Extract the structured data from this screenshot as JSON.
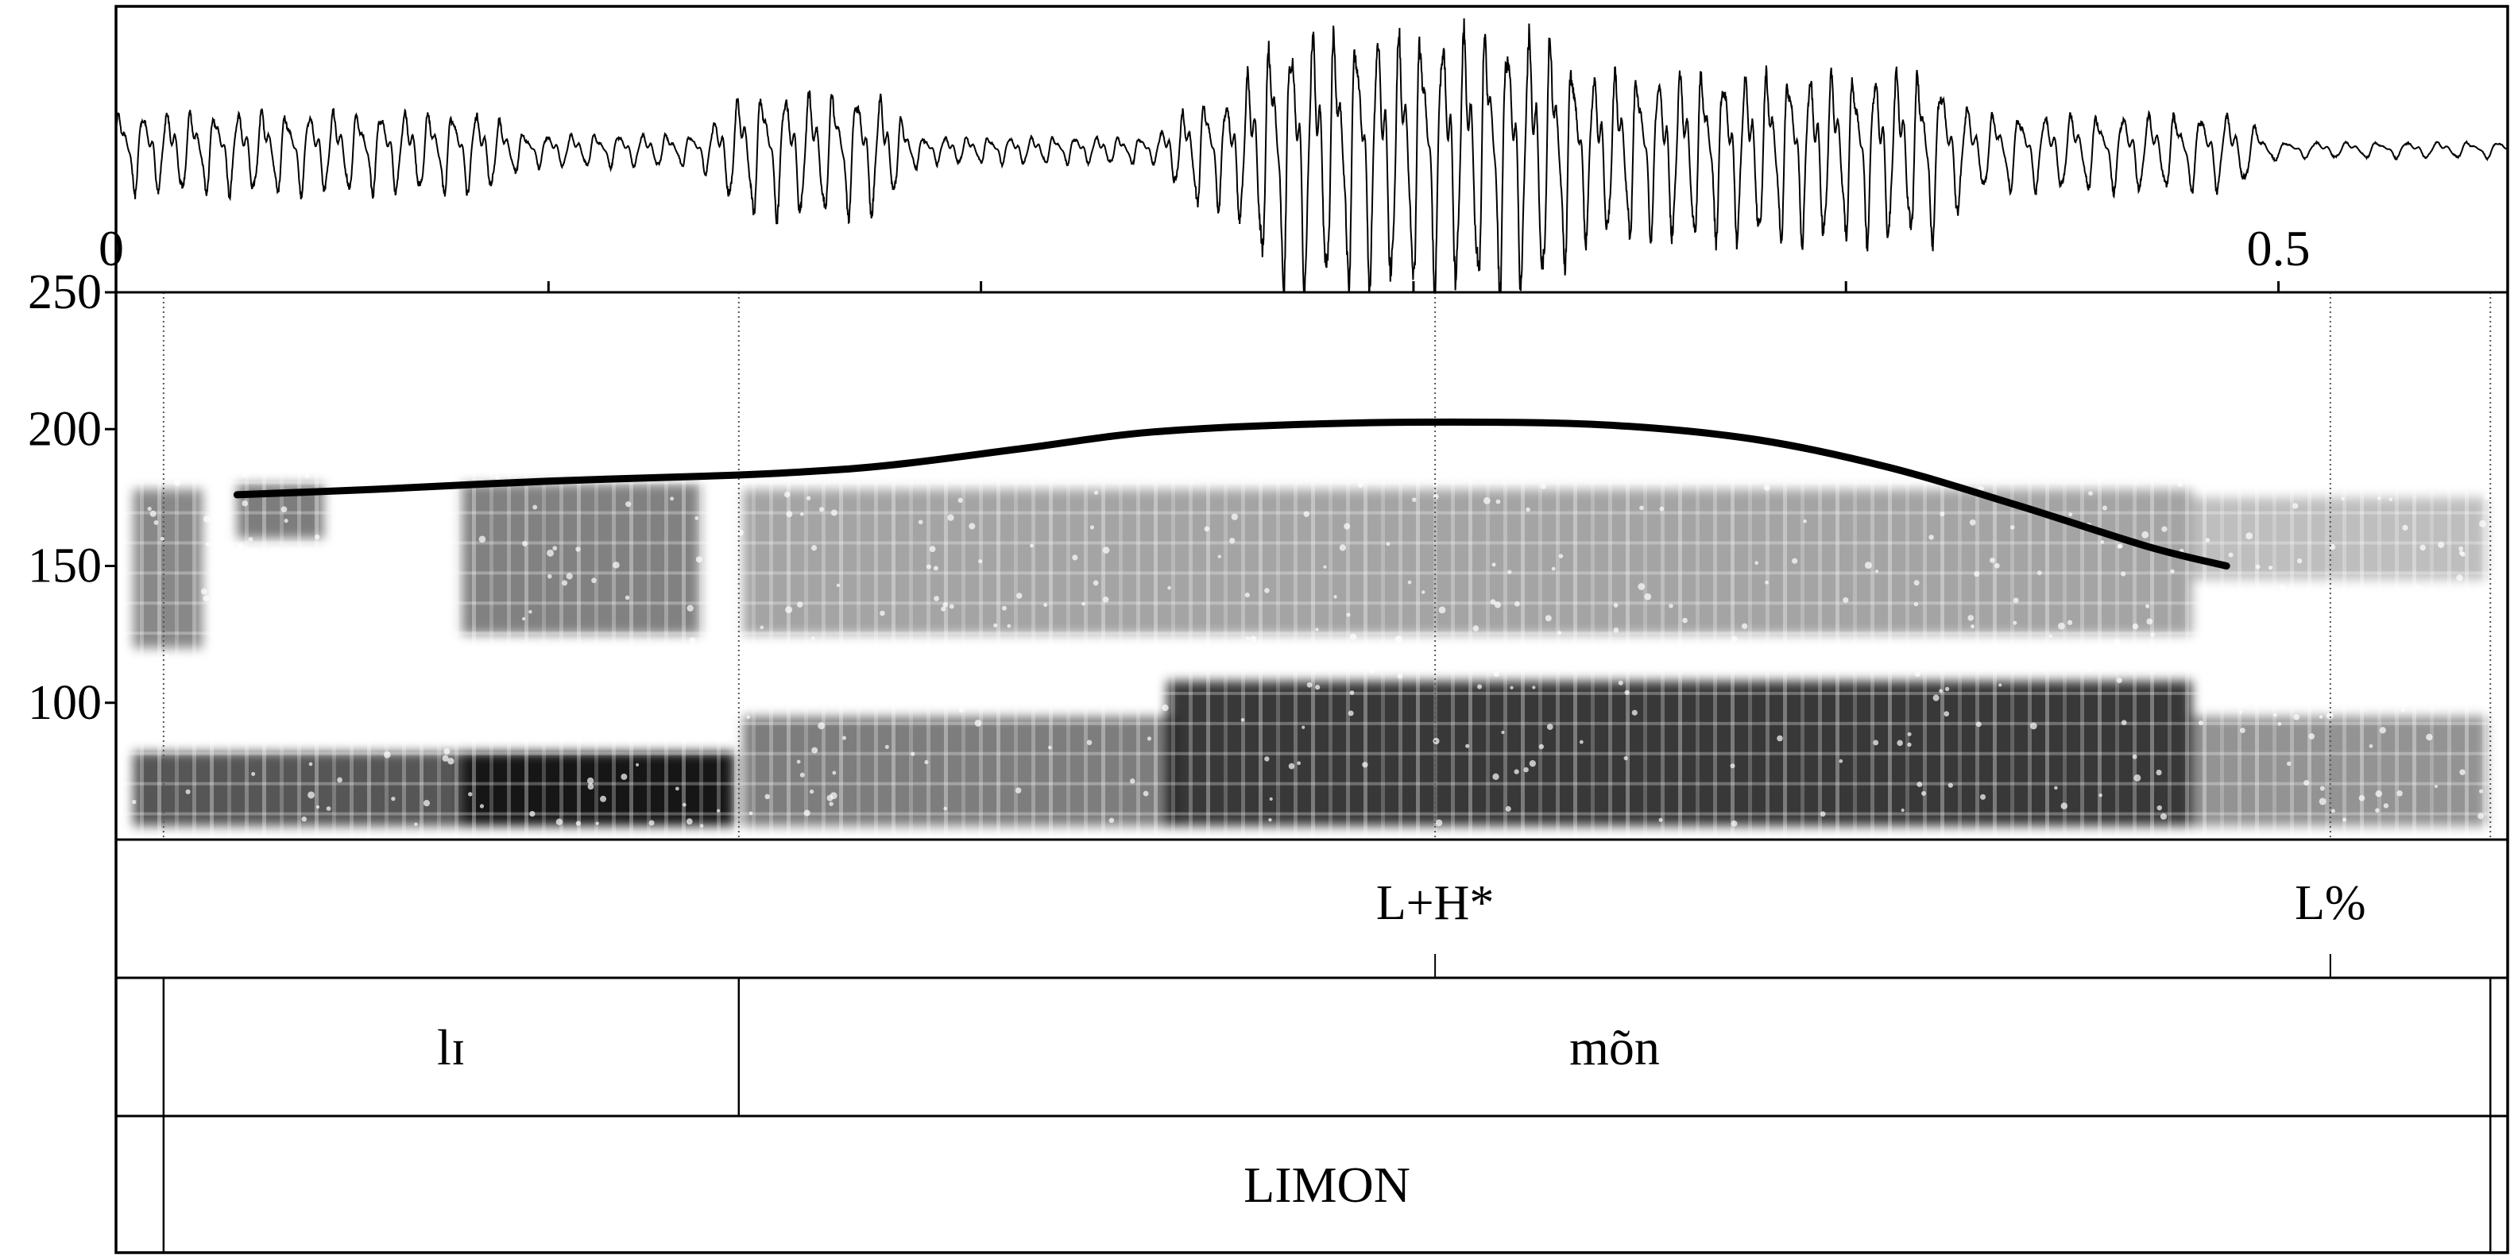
{
  "chart_data": {
    "type": "line",
    "title": "",
    "xlabel": "",
    "ylabel": "",
    "time_axis": {
      "range": [
        0,
        0.553
      ],
      "ticks": [
        0,
        0.1,
        0.2,
        0.3,
        0.4,
        0.5
      ],
      "tick_labels": [
        {
          "value": 0,
          "label": "0"
        },
        {
          "value": 0.5,
          "label": "0.5"
        }
      ]
    },
    "pitch_axis": {
      "range": [
        50,
        250
      ],
      "ticks": [
        {
          "value": 250,
          "label": "250"
        },
        {
          "value": 200,
          "label": "200"
        },
        {
          "value": 150,
          "label": "150"
        },
        {
          "value": 100,
          "label": "100"
        }
      ]
    },
    "waveform": {
      "segments": [
        {
          "start": 0.0,
          "end": 0.085,
          "amp": 0.3,
          "period": 0.0055
        },
        {
          "start": 0.085,
          "end": 0.135,
          "amp": 0.12,
          "period": 0.0055
        },
        {
          "start": 0.135,
          "end": 0.176,
          "amp": 0.45,
          "period": 0.0055
        },
        {
          "start": 0.176,
          "end": 0.24,
          "amp": 0.1,
          "period": 0.005
        },
        {
          "start": 0.24,
          "end": 0.258,
          "amp": 0.4,
          "period": 0.005
        },
        {
          "start": 0.258,
          "end": 0.33,
          "amp": 0.95,
          "period": 0.005
        },
        {
          "start": 0.33,
          "end": 0.42,
          "amp": 0.62,
          "period": 0.005
        },
        {
          "start": 0.42,
          "end": 0.49,
          "amp": 0.28,
          "period": 0.006
        },
        {
          "start": 0.49,
          "end": 0.553,
          "amp": 0.06,
          "period": 0.007
        }
      ]
    },
    "pitch_contour": {
      "unit": "Hz",
      "points": [
        [
          0.028,
          176
        ],
        [
          0.06,
          178
        ],
        [
          0.1,
          181
        ],
        [
          0.14,
          183
        ],
        [
          0.16,
          184.5
        ],
        [
          0.18,
          187
        ],
        [
          0.21,
          193
        ],
        [
          0.24,
          199
        ],
        [
          0.28,
          202
        ],
        [
          0.32,
          202.5
        ],
        [
          0.35,
          201
        ],
        [
          0.38,
          196
        ],
        [
          0.41,
          186
        ],
        [
          0.44,
          172
        ],
        [
          0.47,
          157
        ],
        [
          0.488,
          150
        ]
      ]
    },
    "intensity_bands": [
      {
        "start": 0.004,
        "end": 0.143,
        "hz_low": 55,
        "hz_high": 82,
        "darkness": 0.78
      },
      {
        "start": 0.08,
        "end": 0.143,
        "hz_low": 55,
        "hz_high": 82,
        "darkness": 0.88
      },
      {
        "start": 0.004,
        "end": 0.02,
        "hz_low": 120,
        "hz_high": 178,
        "darkness": 0.55
      },
      {
        "start": 0.028,
        "end": 0.048,
        "hz_low": 160,
        "hz_high": 180,
        "darkness": 0.6
      },
      {
        "start": 0.08,
        "end": 0.135,
        "hz_low": 125,
        "hz_high": 180,
        "darkness": 0.58
      },
      {
        "start": 0.145,
        "end": 0.245,
        "hz_low": 55,
        "hz_high": 95,
        "darkness": 0.6
      },
      {
        "start": 0.145,
        "end": 0.48,
        "hz_low": 125,
        "hz_high": 178,
        "darkness": 0.42
      },
      {
        "start": 0.243,
        "end": 0.48,
        "hz_low": 55,
        "hz_high": 108,
        "darkness": 0.92
      },
      {
        "start": 0.48,
        "end": 0.548,
        "hz_low": 55,
        "hz_high": 95,
        "darkness": 0.5
      },
      {
        "start": 0.48,
        "end": 0.548,
        "hz_low": 145,
        "hz_high": 175,
        "darkness": 0.3
      }
    ],
    "boundaries": [
      0.011,
      0.144,
      0.305,
      0.512,
      0.549
    ],
    "tiers": [
      {
        "name": "tones",
        "points": [
          {
            "time": 0.305,
            "label": "L+H*"
          },
          {
            "time": 0.512,
            "label": "L%"
          }
        ]
      },
      {
        "name": "syllables",
        "intervals": [
          {
            "start": 0.0,
            "end": 0.011,
            "label": ""
          },
          {
            "start": 0.011,
            "end": 0.144,
            "label": "lɪ"
          },
          {
            "start": 0.144,
            "end": 0.549,
            "label": "mõn"
          },
          {
            "start": 0.549,
            "end": 0.553,
            "label": ""
          }
        ]
      },
      {
        "name": "words",
        "intervals": [
          {
            "start": 0.0,
            "end": 0.011,
            "label": ""
          },
          {
            "start": 0.011,
            "end": 0.549,
            "label": "LIMON"
          },
          {
            "start": 0.549,
            "end": 0.553,
            "label": ""
          }
        ]
      }
    ]
  }
}
